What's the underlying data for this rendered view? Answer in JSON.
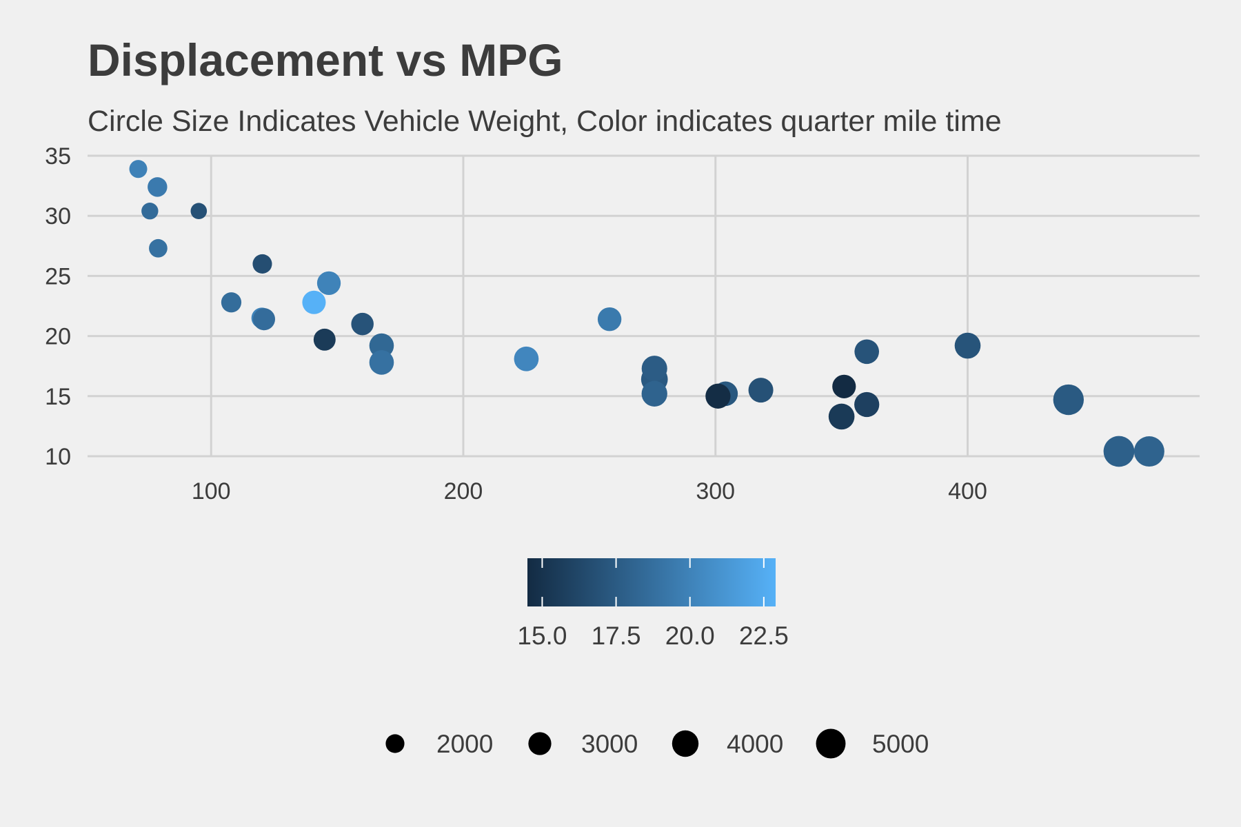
{
  "chart_data": {
    "type": "scatter",
    "title": "Displacement vs MPG",
    "subtitle": "Circle Size Indicates Vehicle Weight, Color indicates quarter mile time",
    "xlabel": "",
    "ylabel": "",
    "xlim": [
      51,
      492
    ],
    "ylim": [
      10,
      35
    ],
    "x_ticks": [
      100,
      200,
      300,
      400
    ],
    "y_ticks": [
      10,
      15,
      20,
      25,
      30,
      35
    ],
    "grid": true,
    "size_variable": "weight",
    "color_variable": "quarter mile time",
    "color_scale": {
      "low": "#132b43",
      "high": "#56b1f7",
      "domain": [
        14.5,
        22.9
      ]
    },
    "color_legend": {
      "ticks": [
        "15.0",
        "17.5",
        "20.0",
        "22.5"
      ],
      "placement": "bottom"
    },
    "size_legend": {
      "ticks": [
        "2000",
        "3000",
        "4000",
        "5000"
      ],
      "values": [
        2000,
        3000,
        4000,
        5000
      ],
      "placement": "bottom"
    },
    "points": [
      {
        "x": 160,
        "y": 21.0,
        "weight": 2620,
        "qsec": 16.46
      },
      {
        "x": 160,
        "y": 21.0,
        "weight": 2875,
        "qsec": 17.02
      },
      {
        "x": 108,
        "y": 22.8,
        "weight": 2320,
        "qsec": 18.61
      },
      {
        "x": 258,
        "y": 21.4,
        "weight": 3215,
        "qsec": 19.44
      },
      {
        "x": 360,
        "y": 18.7,
        "weight": 3440,
        "qsec": 17.02
      },
      {
        "x": 225,
        "y": 18.1,
        "weight": 3460,
        "qsec": 20.22
      },
      {
        "x": 360,
        "y": 14.3,
        "weight": 3570,
        "qsec": 15.84
      },
      {
        "x": 146.7,
        "y": 24.4,
        "weight": 3190,
        "qsec": 20.0
      },
      {
        "x": 140.8,
        "y": 22.8,
        "weight": 3150,
        "qsec": 22.9
      },
      {
        "x": 167.6,
        "y": 19.2,
        "weight": 3440,
        "qsec": 18.3
      },
      {
        "x": 167.6,
        "y": 17.8,
        "weight": 3440,
        "qsec": 18.9
      },
      {
        "x": 275.8,
        "y": 16.4,
        "weight": 4070,
        "qsec": 17.4
      },
      {
        "x": 275.8,
        "y": 17.3,
        "weight": 3730,
        "qsec": 17.6
      },
      {
        "x": 275.8,
        "y": 15.2,
        "weight": 3780,
        "qsec": 18.0
      },
      {
        "x": 472,
        "y": 10.4,
        "weight": 5250,
        "qsec": 17.98
      },
      {
        "x": 460,
        "y": 10.4,
        "weight": 5424,
        "qsec": 17.82
      },
      {
        "x": 440,
        "y": 14.7,
        "weight": 5345,
        "qsec": 17.42
      },
      {
        "x": 78.7,
        "y": 32.4,
        "weight": 2200,
        "qsec": 19.47
      },
      {
        "x": 75.7,
        "y": 30.4,
        "weight": 1615,
        "qsec": 18.52
      },
      {
        "x": 71.1,
        "y": 33.9,
        "weight": 1835,
        "qsec": 19.9
      },
      {
        "x": 120.1,
        "y": 21.5,
        "weight": 2465,
        "qsec": 20.01
      },
      {
        "x": 318,
        "y": 15.5,
        "weight": 3520,
        "qsec": 16.87
      },
      {
        "x": 304,
        "y": 15.2,
        "weight": 3435,
        "qsec": 17.3
      },
      {
        "x": 350,
        "y": 13.3,
        "weight": 3840,
        "qsec": 15.41
      },
      {
        "x": 400,
        "y": 19.2,
        "weight": 3845,
        "qsec": 17.05
      },
      {
        "x": 79,
        "y": 27.3,
        "weight": 1935,
        "qsec": 18.9
      },
      {
        "x": 120.3,
        "y": 26.0,
        "weight": 2140,
        "qsec": 16.7
      },
      {
        "x": 95.1,
        "y": 30.4,
        "weight": 1513,
        "qsec": 16.9
      },
      {
        "x": 351,
        "y": 15.8,
        "weight": 3170,
        "qsec": 14.5
      },
      {
        "x": 145,
        "y": 19.7,
        "weight": 2770,
        "qsec": 15.5
      },
      {
        "x": 301,
        "y": 15.0,
        "weight": 3570,
        "qsec": 14.6
      },
      {
        "x": 121,
        "y": 21.4,
        "weight": 2780,
        "qsec": 18.6
      }
    ]
  }
}
